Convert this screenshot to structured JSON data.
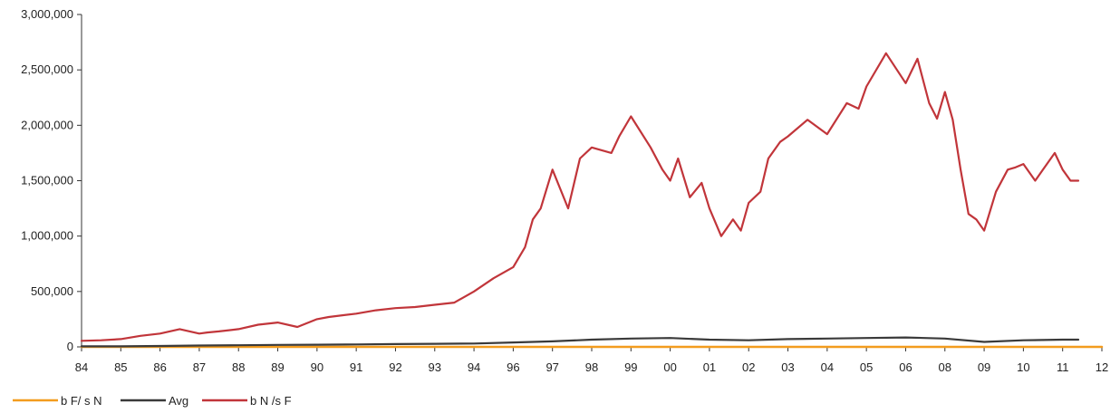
{
  "chart_data": {
    "type": "line",
    "x_tick_labels": [
      "84",
      "85",
      "86",
      "87",
      "88",
      "89",
      "90",
      "91",
      "92",
      "93",
      "94",
      "96",
      "97",
      "98",
      "99",
      "00",
      "01",
      "02",
      "03",
      "04",
      "05",
      "06",
      "08",
      "09",
      "10",
      "11",
      "12"
    ],
    "y_tick_labels": [
      "0",
      "500,000",
      "1,000,000",
      "1,500,000",
      "2,000,000",
      "2,500,000",
      "3,000,000"
    ],
    "ylim": [
      0,
      3000000
    ],
    "grid": false,
    "legend_position": "bottom-left",
    "series": [
      {
        "name": "b F/ s  N",
        "color": "#f39c1e",
        "x": [
          0,
          26
        ],
        "y": [
          0,
          0
        ]
      },
      {
        "name": "Avg",
        "color": "#3a3a3a",
        "x": [
          0,
          1,
          2,
          3,
          4,
          5,
          6,
          7,
          8,
          9,
          10,
          11,
          12,
          13,
          14,
          15,
          16,
          17,
          18,
          19,
          20,
          21,
          22,
          23,
          24,
          25,
          25.4
        ],
        "y": [
          5000,
          5000,
          8000,
          12000,
          15000,
          18000,
          20000,
          22000,
          25000,
          28000,
          30000,
          40000,
          50000,
          65000,
          75000,
          80000,
          65000,
          60000,
          70000,
          75000,
          80000,
          85000,
          75000,
          45000,
          60000,
          65000,
          65000
        ]
      },
      {
        "name": "b N /s F",
        "color": "#c1353a",
        "x": [
          0,
          0.5,
          1,
          1.5,
          2,
          2.5,
          3,
          3.2,
          3.5,
          4,
          4.5,
          5,
          5.5,
          6,
          6.3,
          7,
          7.5,
          8,
          8.5,
          9,
          9.5,
          10,
          10.5,
          11,
          11.3,
          11.5,
          11.7,
          12,
          12.4,
          12.7,
          13,
          13.5,
          13.7,
          14,
          14.5,
          14.8,
          15,
          15.2,
          15.5,
          15.8,
          16,
          16.3,
          16.6,
          16.8,
          17,
          17.3,
          17.5,
          17.8,
          18,
          18.5,
          19,
          19.5,
          19.8,
          20,
          20.5,
          21,
          21.3,
          21.6,
          21.8,
          22,
          22.2,
          22.4,
          22.6,
          22.8,
          23,
          23.3,
          23.6,
          23.8,
          24,
          24.3,
          24.5,
          24.8,
          25,
          25.2,
          25.4
        ],
        "y": [
          55000,
          60000,
          70000,
          100000,
          120000,
          160000,
          120000,
          130000,
          140000,
          160000,
          200000,
          220000,
          180000,
          250000,
          270000,
          300000,
          330000,
          350000,
          360000,
          380000,
          400000,
          500000,
          620000,
          720000,
          900000,
          1150000,
          1250000,
          1600000,
          1250000,
          1700000,
          1800000,
          1750000,
          1900000,
          2080000,
          1800000,
          1600000,
          1500000,
          1700000,
          1350000,
          1480000,
          1250000,
          1000000,
          1150000,
          1050000,
          1300000,
          1400000,
          1700000,
          1850000,
          1900000,
          2050000,
          1920000,
          2200000,
          2150000,
          2350000,
          2650000,
          2380000,
          2600000,
          2200000,
          2060000,
          2300000,
          2050000,
          1600000,
          1200000,
          1150000,
          1050000,
          1400000,
          1600000,
          1620000,
          1650000,
          1500000,
          1600000,
          1750000,
          1600000,
          1500000,
          1500000
        ]
      }
    ]
  },
  "legend": {
    "items": [
      {
        "label": "b F/ s  N",
        "color": "#f39c1e"
      },
      {
        "label": "Avg",
        "color": "#3a3a3a"
      },
      {
        "label": "b N /s F",
        "color": "#c1353a"
      }
    ]
  },
  "colors": {
    "axis": "#333333",
    "text": "#222222"
  }
}
